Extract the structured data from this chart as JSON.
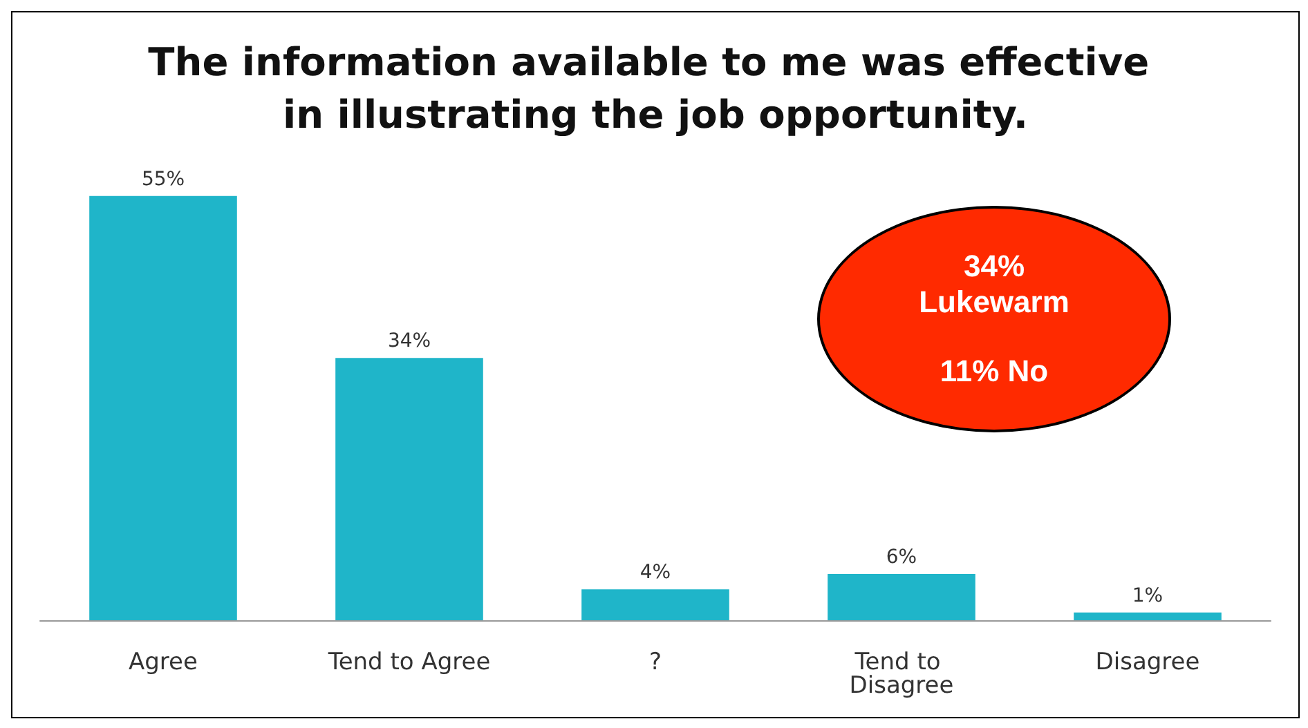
{
  "chart_data": {
    "type": "bar",
    "title": "The information available to me was effective in illustrating the job opportunity.",
    "categories": [
      "Agree",
      "Tend to Agree",
      "?",
      "Tend to Disagree",
      "Disagree"
    ],
    "values": [
      55,
      34,
      4,
      6,
      1
    ],
    "color": "#1fb5c9",
    "value_labels": [
      "55%",
      "34%",
      "4%",
      "6%",
      "1%"
    ],
    "annotations": [
      "34%",
      "Lukewarm",
      "11% No"
    ]
  }
}
